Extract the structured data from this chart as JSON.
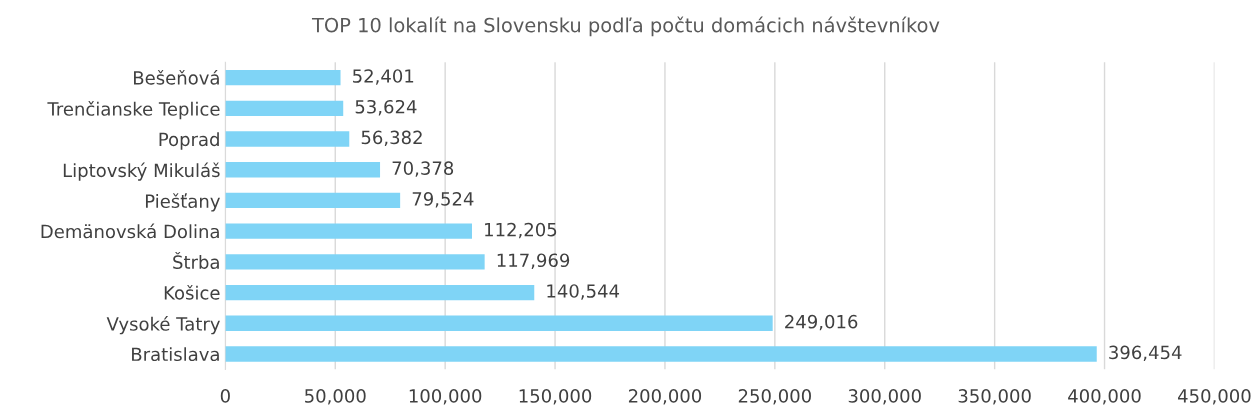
{
  "chart_data": {
    "type": "bar",
    "orientation": "horizontal",
    "title": "TOP 10 lokalít na Slovensku podľa počtu domácich návštevníkov",
    "categories": [
      "Bešeňová",
      "Trenčianske Teplice",
      "Poprad",
      "Liptovský Mikuláš",
      "Piešťany",
      "Demänovská Dolina",
      "Štrba",
      "Košice",
      "Vysoké Tatry",
      "Bratislava"
    ],
    "values": [
      52401,
      53624,
      56382,
      70378,
      79524,
      112205,
      117969,
      140544,
      249016,
      396454
    ],
    "value_labels": [
      "52,401",
      "53,624",
      "56,382",
      "70,378",
      "79,524",
      "112,205",
      "117,969",
      "140,544",
      "249,016",
      "396,454"
    ],
    "color": "#7fd4f6",
    "xlim": [
      0,
      450000
    ],
    "xticks": [
      {
        "value": 0,
        "label": "0"
      },
      {
        "value": 50000,
        "label": "50,000"
      },
      {
        "value": 100000,
        "label": "100,000"
      },
      {
        "value": 150000,
        "label": "150,000"
      },
      {
        "value": 200000,
        "label": "200,000"
      },
      {
        "value": 250000,
        "label": "250,000"
      },
      {
        "value": 300000,
        "label": "300,000"
      },
      {
        "value": 350000,
        "label": "350,000"
      },
      {
        "value": 400000,
        "label": "400,000"
      },
      {
        "value": 450000,
        "label": "450,000"
      }
    ],
    "grid": "x",
    "legend": false
  }
}
